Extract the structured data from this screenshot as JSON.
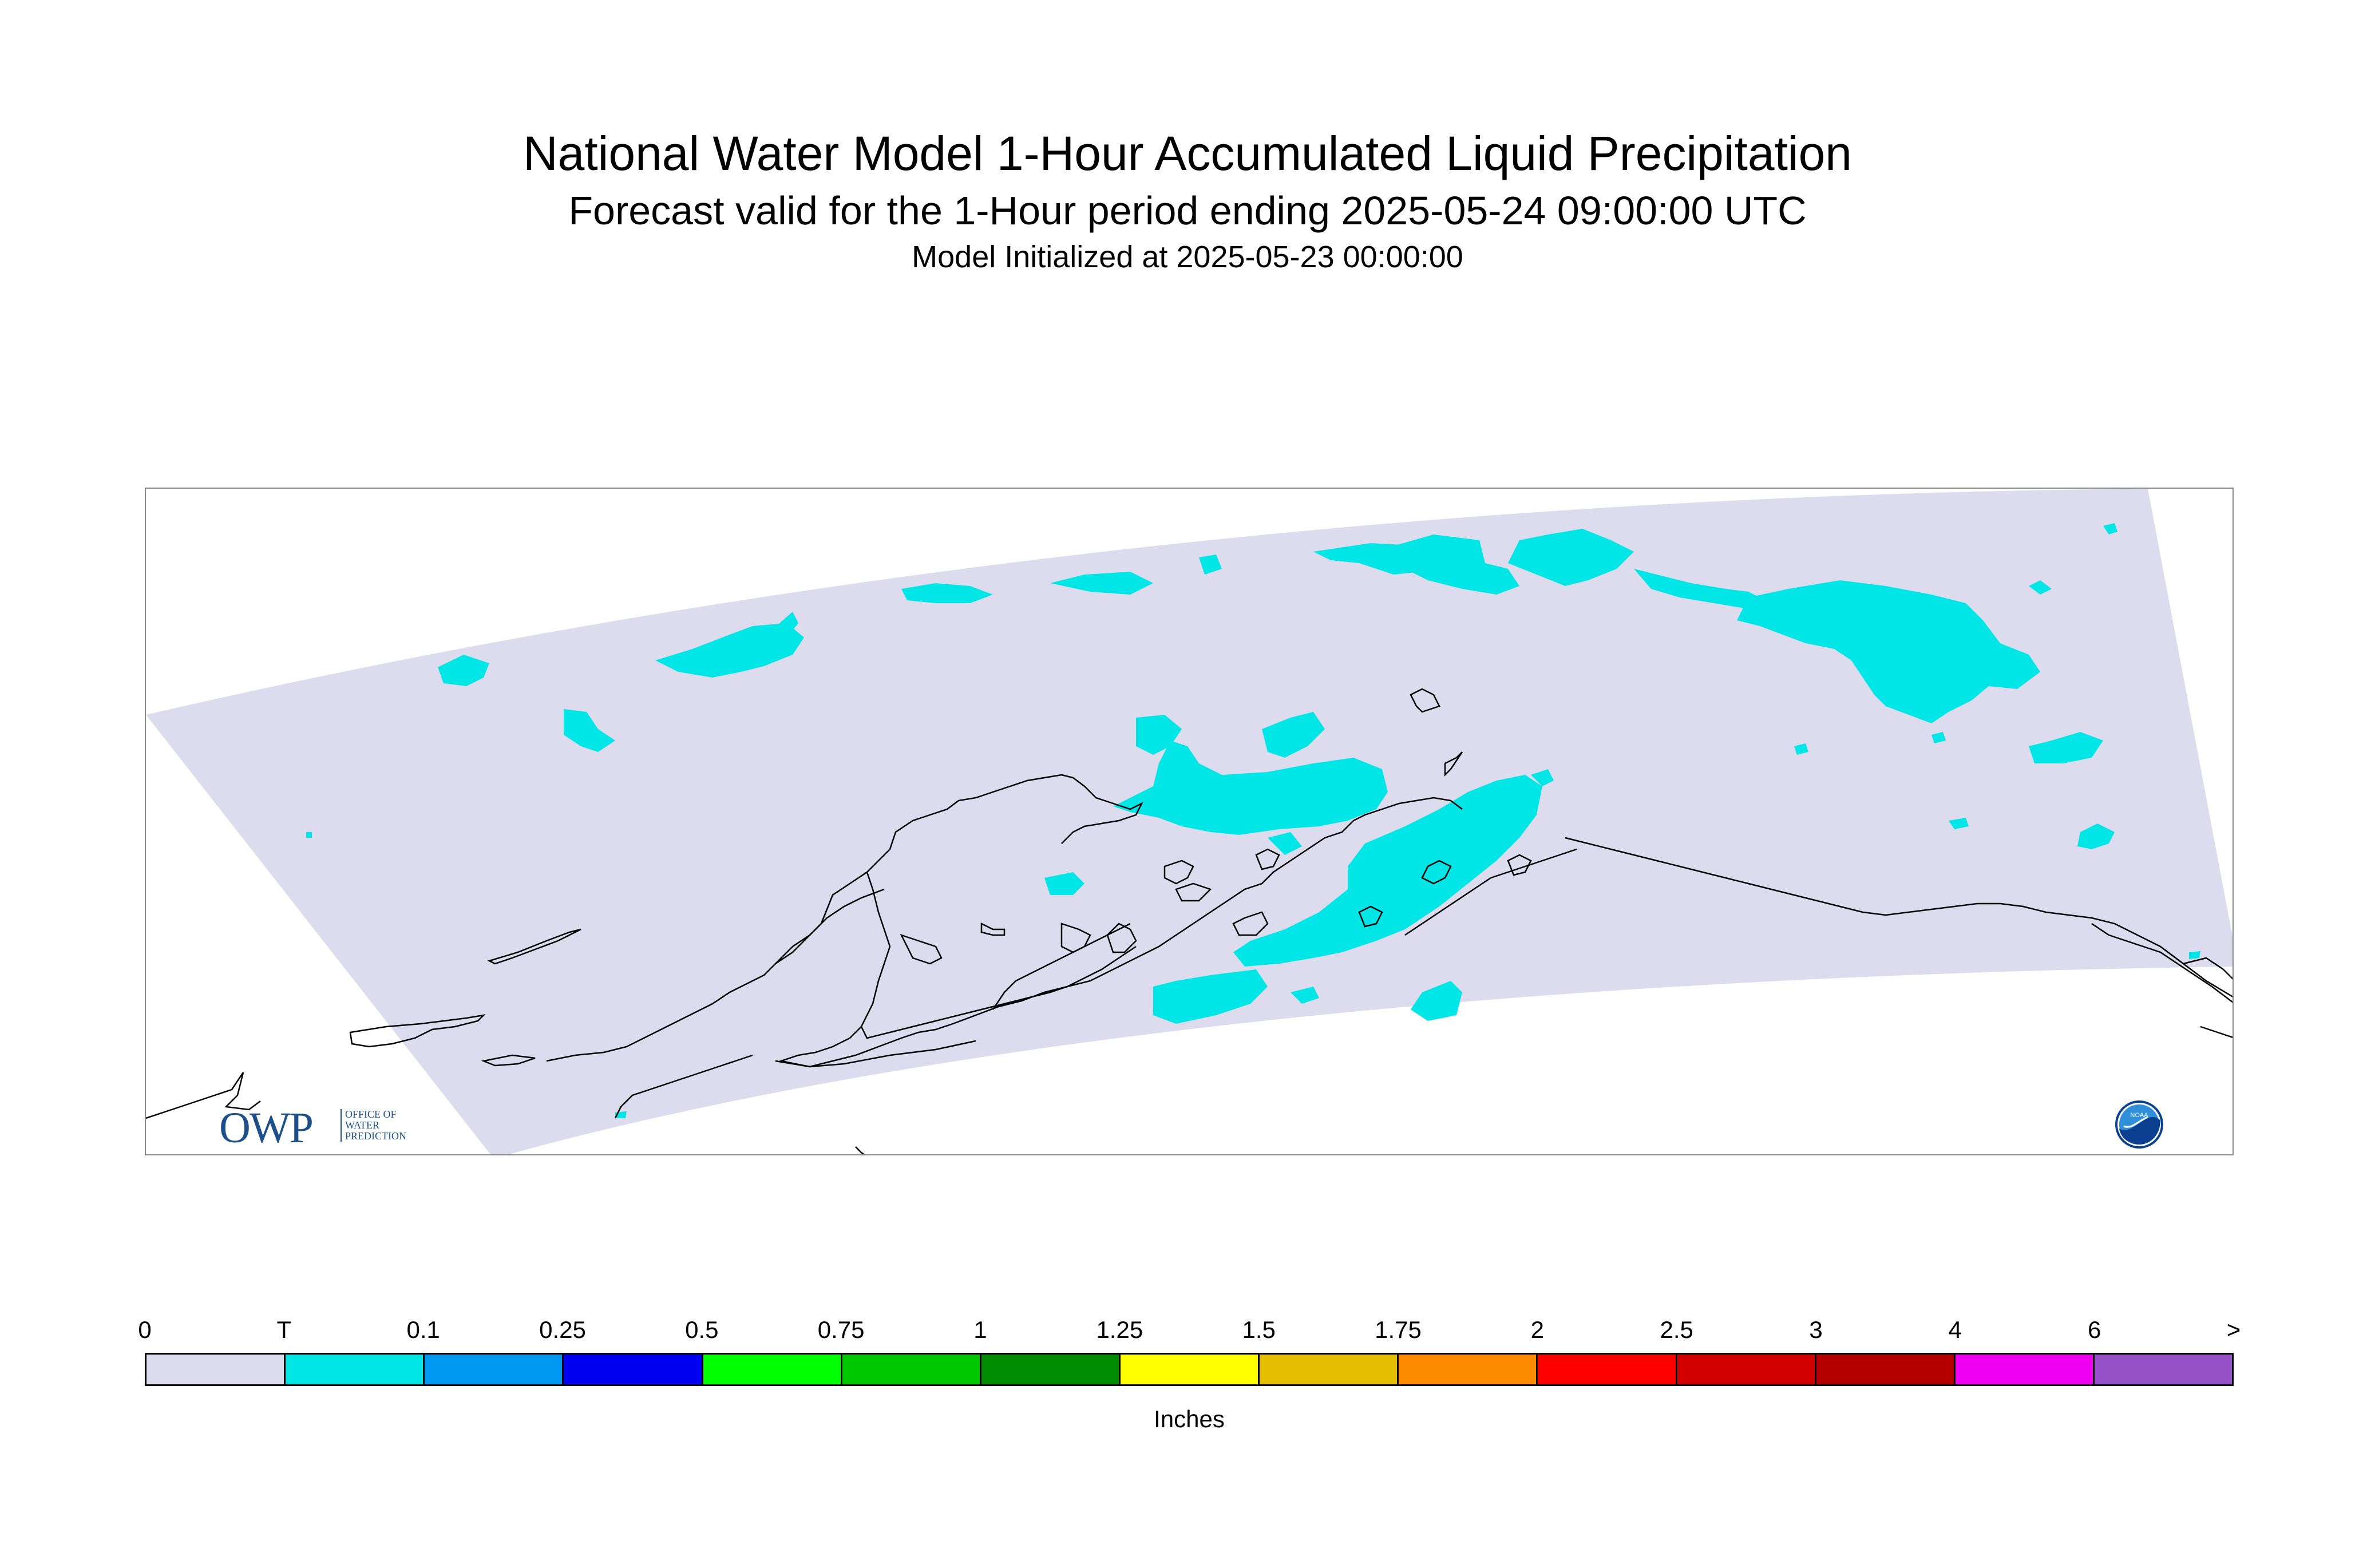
{
  "title": "National Water Model 1-Hour Accumulated Liquid Precipitation",
  "subtitle": "Forecast valid for the 1-Hour period ending 2025-05-24 09:00:00 UTC",
  "init_line": "Model Initialized at 2025-05-23 00:00:00",
  "map": {
    "domain_color": "#dcdcee",
    "precip_color": "#00e6e6",
    "coast_color": "#000000"
  },
  "logos": {
    "owp_letters": "OWP",
    "owp_text": [
      "OFFICE OF",
      "WATER",
      "PREDICTION"
    ],
    "noaa_text": "NOAA"
  },
  "legend": {
    "units": "Inches",
    "tick_labels": [
      "0",
      "T",
      "0.1",
      "0.25",
      "0.5",
      "0.75",
      "1",
      "1.25",
      "1.5",
      "1.75",
      "2",
      "2.5",
      "3",
      "4",
      "6",
      ">"
    ],
    "colors": [
      "#dcdcee",
      "#00e6e6",
      "#0099f2",
      "#0000f2",
      "#00ff00",
      "#00c800",
      "#008c00",
      "#ffff00",
      "#e6be00",
      "#ff8c00",
      "#ff0000",
      "#d20000",
      "#b40000",
      "#f000f0",
      "#9650c8"
    ]
  }
}
